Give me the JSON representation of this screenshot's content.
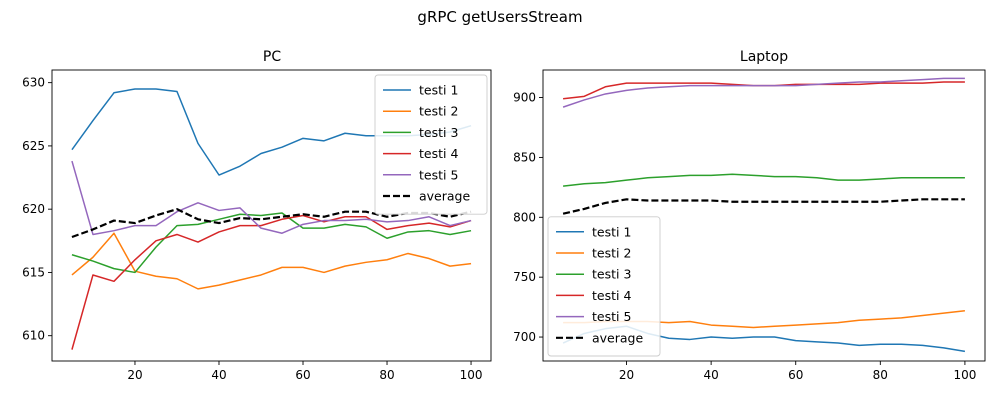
{
  "figure": {
    "suptitle": "gRPC getUsersStream"
  },
  "chart_data": [
    {
      "type": "line",
      "title": "PC",
      "xlabel": "",
      "ylabel": "",
      "xlim": [
        0.25,
        104.75
      ],
      "ylim": [
        608.0,
        631.0
      ],
      "xticks": [
        20,
        40,
        60,
        80,
        100
      ],
      "yticks": [
        610,
        615,
        620,
        625,
        630
      ],
      "legend_position": "upper right",
      "grid": false,
      "x": [
        5,
        10,
        15,
        20,
        25,
        30,
        35,
        40,
        45,
        50,
        55,
        60,
        65,
        70,
        75,
        80,
        85,
        90,
        95,
        100
      ],
      "series": [
        {
          "name": "testi 1",
          "color": "#1f77b4",
          "dash": "solid",
          "values": [
            624.7,
            627.0,
            629.2,
            629.5,
            629.5,
            629.3,
            625.2,
            622.7,
            623.4,
            624.4,
            624.9,
            625.6,
            625.4,
            626.0,
            625.8,
            625.8,
            625.8,
            625.9,
            626.1,
            626.6
          ]
        },
        {
          "name": "testi 2",
          "color": "#ff7f0e",
          "dash": "solid",
          "values": [
            614.8,
            616.2,
            618.1,
            615.1,
            614.7,
            614.5,
            613.7,
            614.0,
            614.4,
            614.8,
            615.4,
            615.4,
            615.0,
            615.5,
            615.8,
            616.0,
            616.5,
            616.1,
            615.5,
            615.7
          ]
        },
        {
          "name": "testi 3",
          "color": "#2ca02c",
          "dash": "solid",
          "values": [
            616.4,
            615.9,
            615.3,
            615.0,
            617.0,
            618.7,
            618.8,
            619.2,
            619.6,
            619.5,
            619.7,
            618.5,
            618.5,
            618.8,
            618.6,
            617.7,
            618.2,
            618.3,
            618.0,
            618.3
          ]
        },
        {
          "name": "testi 4",
          "color": "#d62728",
          "dash": "solid",
          "values": [
            608.9,
            614.8,
            614.3,
            616.0,
            617.5,
            618.0,
            617.4,
            618.2,
            618.7,
            618.7,
            619.2,
            619.5,
            619.0,
            619.4,
            619.4,
            618.4,
            618.7,
            618.9,
            618.6,
            619.1
          ]
        },
        {
          "name": "testi 5",
          "color": "#9467bd",
          "dash": "solid",
          "values": [
            623.8,
            618.0,
            618.3,
            618.7,
            618.7,
            619.8,
            620.5,
            619.9,
            620.1,
            618.5,
            618.1,
            618.8,
            619.1,
            619.1,
            619.2,
            619.0,
            619.1,
            619.4,
            618.7,
            619.1
          ]
        },
        {
          "name": "average",
          "color": "#000000",
          "dash": "dashed",
          "values": [
            617.8,
            618.4,
            619.1,
            618.9,
            619.5,
            620.0,
            619.2,
            618.9,
            619.3,
            619.2,
            619.4,
            619.6,
            619.4,
            619.8,
            619.8,
            619.4,
            619.7,
            619.7,
            619.4,
            619.8
          ]
        }
      ]
    },
    {
      "type": "line",
      "title": "Laptop",
      "xlabel": "",
      "ylabel": "",
      "xlim": [
        0.25,
        104.75
      ],
      "ylim": [
        680,
        923
      ],
      "xticks": [
        20,
        40,
        60,
        80,
        100
      ],
      "yticks": [
        700,
        750,
        800,
        850,
        900
      ],
      "legend_position": "lower left",
      "grid": false,
      "x": [
        5,
        10,
        15,
        20,
        25,
        30,
        35,
        40,
        45,
        50,
        55,
        60,
        65,
        70,
        75,
        80,
        85,
        90,
        95,
        100
      ],
      "series": [
        {
          "name": "testi 1",
          "color": "#1f77b4",
          "dash": "solid",
          "values": [
            695,
            703,
            707,
            709,
            703,
            699,
            698,
            700,
            699,
            700,
            700,
            697,
            696,
            695,
            693,
            694,
            694,
            693,
            691,
            688
          ]
        },
        {
          "name": "testi 2",
          "color": "#ff7f0e",
          "dash": "solid",
          "values": [
            712,
            712,
            713,
            713,
            713,
            712,
            713,
            710,
            709,
            708,
            709,
            710,
            711,
            712,
            714,
            715,
            716,
            718,
            720,
            722
          ]
        },
        {
          "name": "testi 3",
          "color": "#2ca02c",
          "dash": "solid",
          "values": [
            826,
            828,
            829,
            831,
            833,
            834,
            835,
            835,
            836,
            835,
            834,
            834,
            833,
            831,
            831,
            832,
            833,
            833,
            833,
            833
          ]
        },
        {
          "name": "testi 4",
          "color": "#d62728",
          "dash": "solid",
          "values": [
            899,
            901,
            909,
            912,
            912,
            912,
            912,
            912,
            911,
            910,
            910,
            911,
            911,
            911,
            911,
            912,
            912,
            912,
            913,
            913
          ]
        },
        {
          "name": "testi 5",
          "color": "#9467bd",
          "dash": "solid",
          "values": [
            892,
            898,
            903,
            906,
            908,
            909,
            910,
            910,
            910,
            910,
            910,
            910,
            911,
            912,
            913,
            913,
            914,
            915,
            916,
            916
          ]
        },
        {
          "name": "average",
          "color": "#000000",
          "dash": "dashed",
          "values": [
            803,
            807,
            812,
            815,
            814,
            814,
            814,
            814,
            813,
            813,
            813,
            813,
            813,
            813,
            813,
            813,
            814,
            815,
            815,
            815
          ]
        }
      ]
    }
  ]
}
